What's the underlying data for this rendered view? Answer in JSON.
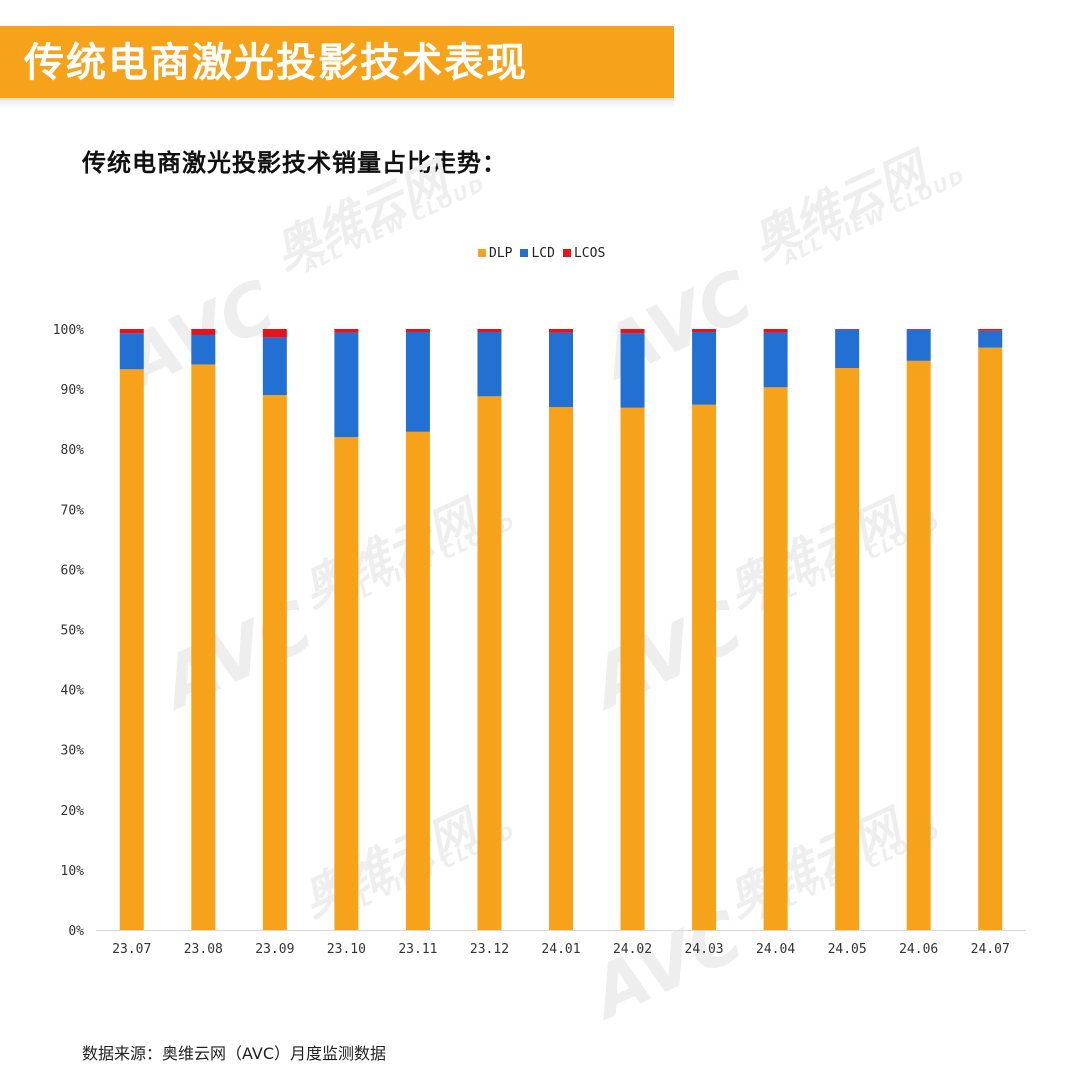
{
  "header": {
    "title": "传统电商激光投影技术表现"
  },
  "subtitle": "传统电商激光投影技术销量占比走势：",
  "legend": [
    {
      "name": "DLP",
      "color": "#f7a21b"
    },
    {
      "name": "LCD",
      "color": "#2370d3"
    },
    {
      "name": "LCOS",
      "color": "#e8121b"
    }
  ],
  "watermark": {
    "logo": "AVC",
    "cn": "奥维云网",
    "en": "ALL VIEW CLOUD"
  },
  "chart_data": {
    "type": "bar",
    "stacked": true,
    "categories": [
      "23.07",
      "23.08",
      "23.09",
      "23.10",
      "23.11",
      "23.12",
      "24.01",
      "24.02",
      "24.03",
      "24.04",
      "24.05",
      "24.06",
      "24.07"
    ],
    "series": [
      {
        "name": "DLP",
        "color": "#f7a21b",
        "values": [
          93.3,
          94.1,
          89.0,
          82.0,
          82.9,
          88.8,
          87.0,
          86.9,
          87.4,
          90.3,
          93.5,
          94.7,
          96.9
        ]
      },
      {
        "name": "LCD",
        "color": "#2370d3",
        "values": [
          6.0,
          4.9,
          9.6,
          17.4,
          16.6,
          10.7,
          12.4,
          12.4,
          12.1,
          9.1,
          6.4,
          5.2,
          2.8
        ]
      },
      {
        "name": "LCOS",
        "color": "#e8121b",
        "values": [
          0.7,
          1.0,
          1.4,
          0.6,
          0.5,
          0.5,
          0.6,
          0.7,
          0.5,
          0.6,
          0.1,
          0.1,
          0.3
        ]
      }
    ],
    "ylim": [
      0,
      100
    ],
    "yticks": [
      0,
      10,
      20,
      30,
      40,
      50,
      60,
      70,
      80,
      90,
      100
    ],
    "ytick_labels": [
      "0%",
      "10%",
      "20%",
      "30%",
      "40%",
      "50%",
      "60%",
      "70%",
      "80%",
      "90%",
      "100%"
    ],
    "grid": false,
    "legend_position": "top-center"
  },
  "source": "数据来源：奥维云网（AVC）月度监测数据"
}
